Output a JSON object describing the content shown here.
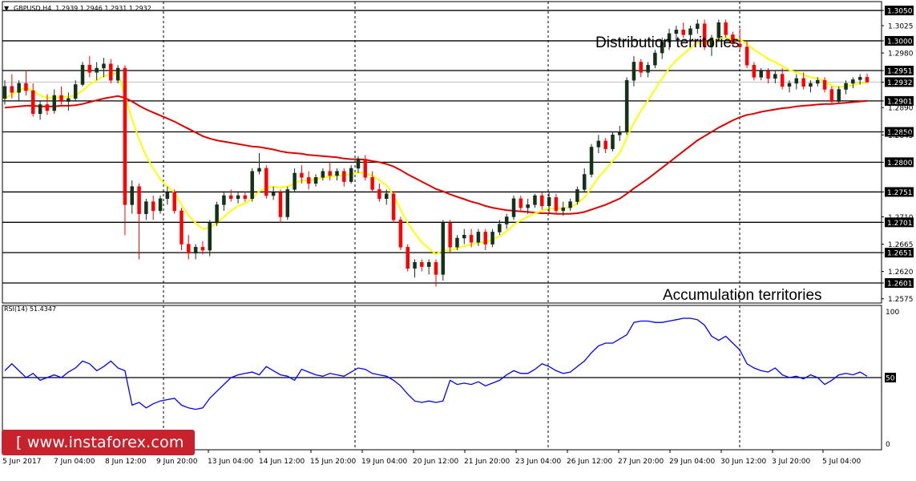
{
  "chart_data": {
    "type": "candlestick",
    "symbol_header": "GBPUSD,H4",
    "ohlc_header": "1.2939 1.2946 1.2931 1.2932",
    "y_ticks": [
      "1.3050",
      "1.3025",
      "1.3000",
      "1.2980",
      "1.2951",
      "1.2932",
      "1.2901",
      "1.2890",
      "1.2850",
      "1.2845",
      "1.2800",
      "1.2751",
      "1.2710",
      "1.2701",
      "1.2665",
      "1.2651",
      "1.2620",
      "1.2601",
      "1.2575"
    ],
    "boxed_levels": [
      "1.3050",
      "1.3000",
      "1.2951",
      "1.2932",
      "1.2901",
      "1.2850",
      "1.2800",
      "1.2751",
      "1.2701",
      "1.2651",
      "1.2601"
    ],
    "current_price": "1.2932",
    "ylim": [
      1.2568,
      1.3062
    ],
    "x_labels": [
      "5 Jun 2017",
      "7 Jun 04:00",
      "8 Jun 12:00",
      "9 Jun 20:00",
      "13 Jun 04:00",
      "14 Jun 12:00",
      "15 Jun 20:00",
      "19 Jun 04:00",
      "20 Jun 12:00",
      "21 Jun 20:00",
      "23 Jun 04:00",
      "26 Jun 12:00",
      "27 Jun 20:00",
      "29 Jun 04:00",
      "30 Jun 12:00",
      "3 Jul 20:00",
      "5 Jul 04:00"
    ],
    "annotations": [
      "Distribution territories",
      "Accumulation territories"
    ],
    "candles": [
      [
        1.2905,
        1.2935,
        1.2895,
        1.2925
      ],
      [
        1.2925,
        1.2945,
        1.2905,
        1.2915
      ],
      [
        1.2915,
        1.2935,
        1.29,
        1.293
      ],
      [
        1.293,
        1.295,
        1.291,
        1.2918
      ],
      [
        1.2918,
        1.293,
        1.2875,
        1.288
      ],
      [
        1.288,
        1.29,
        1.287,
        1.2895
      ],
      [
        1.2895,
        1.2912,
        1.2878,
        1.2885
      ],
      [
        1.2885,
        1.292,
        1.288,
        1.291
      ],
      [
        1.291,
        1.2925,
        1.2895,
        1.29
      ],
      [
        1.29,
        1.2915,
        1.2885,
        1.2905
      ],
      [
        1.2905,
        1.2935,
        1.29,
        1.2928
      ],
      [
        1.2928,
        1.2965,
        1.2925,
        1.296
      ],
      [
        1.296,
        1.2975,
        1.294,
        1.2948
      ],
      [
        1.2948,
        1.2965,
        1.2935,
        1.2955
      ],
      [
        1.2955,
        1.2972,
        1.294,
        1.2962
      ],
      [
        1.2962,
        1.297,
        1.293,
        1.2935
      ],
      [
        1.2935,
        1.296,
        1.293,
        1.2955
      ],
      [
        1.2955,
        1.296,
        1.268,
        1.273
      ],
      [
        1.273,
        1.277,
        1.2715,
        1.276
      ],
      [
        1.276,
        1.2765,
        1.264,
        1.2715
      ],
      [
        1.2715,
        1.274,
        1.2705,
        1.2735
      ],
      [
        1.2735,
        1.2745,
        1.2705,
        1.272
      ],
      [
        1.272,
        1.2745,
        1.2715,
        1.274
      ],
      [
        1.274,
        1.276,
        1.273,
        1.275
      ],
      [
        1.275,
        1.2755,
        1.2715,
        1.272
      ],
      [
        1.272,
        1.2725,
        1.2655,
        1.2665
      ],
      [
        1.2665,
        1.268,
        1.264,
        1.265
      ],
      [
        1.265,
        1.2665,
        1.264,
        1.266
      ],
      [
        1.266,
        1.267,
        1.2648,
        1.2655
      ],
      [
        1.2655,
        1.2705,
        1.2645,
        1.27
      ],
      [
        1.27,
        1.2735,
        1.2695,
        1.273
      ],
      [
        1.273,
        1.275,
        1.272,
        1.2745
      ],
      [
        1.2745,
        1.2755,
        1.2735,
        1.274
      ],
      [
        1.274,
        1.275,
        1.2732,
        1.2745
      ],
      [
        1.2745,
        1.2752,
        1.2735,
        1.274
      ],
      [
        1.274,
        1.279,
        1.2735,
        1.2785
      ],
      [
        1.2785,
        1.2815,
        1.278,
        1.279
      ],
      [
        1.279,
        1.2795,
        1.274,
        1.2745
      ],
      [
        1.2745,
        1.276,
        1.2738,
        1.275
      ],
      [
        1.275,
        1.2755,
        1.27,
        1.271
      ],
      [
        1.271,
        1.276,
        1.2705,
        1.2755
      ],
      [
        1.2755,
        1.279,
        1.275,
        1.2782
      ],
      [
        1.2782,
        1.2795,
        1.2765,
        1.2775
      ],
      [
        1.2775,
        1.2785,
        1.2755,
        1.2765
      ],
      [
        1.2765,
        1.278,
        1.276,
        1.2775
      ],
      [
        1.2775,
        1.279,
        1.277,
        1.2785
      ],
      [
        1.2785,
        1.28,
        1.277,
        1.2778
      ],
      [
        1.2778,
        1.279,
        1.277,
        1.2785
      ],
      [
        1.2785,
        1.279,
        1.276,
        1.2768
      ],
      [
        1.2768,
        1.2795,
        1.2765,
        1.279
      ],
      [
        1.279,
        1.281,
        1.2782,
        1.2805
      ],
      [
        1.2805,
        1.2812,
        1.277,
        1.2775
      ],
      [
        1.2775,
        1.2785,
        1.275,
        1.2755
      ],
      [
        1.2755,
        1.2765,
        1.2735,
        1.274
      ],
      [
        1.274,
        1.2755,
        1.273,
        1.2748
      ],
      [
        1.2748,
        1.2752,
        1.27,
        1.2705
      ],
      [
        1.2705,
        1.271,
        1.2655,
        1.266
      ],
      [
        1.266,
        1.2665,
        1.262,
        1.2625
      ],
      [
        1.2625,
        1.264,
        1.261,
        1.2635
      ],
      [
        1.2635,
        1.264,
        1.262,
        1.2628
      ],
      [
        1.2628,
        1.264,
        1.2615,
        1.2635
      ],
      [
        1.2635,
        1.264,
        1.2595,
        1.2615
      ],
      [
        1.2615,
        1.2705,
        1.2605,
        1.27
      ],
      [
        1.27,
        1.2705,
        1.265,
        1.266
      ],
      [
        1.266,
        1.268,
        1.2655,
        1.2675
      ],
      [
        1.2675,
        1.269,
        1.2665,
        1.268
      ],
      [
        1.268,
        1.269,
        1.266,
        1.2668
      ],
      [
        1.2668,
        1.269,
        1.2662,
        1.2685
      ],
      [
        1.2685,
        1.269,
        1.2655,
        1.2665
      ],
      [
        1.2665,
        1.269,
        1.266,
        1.2685
      ],
      [
        1.2685,
        1.2705,
        1.268,
        1.2698
      ],
      [
        1.2698,
        1.2715,
        1.269,
        1.271
      ],
      [
        1.271,
        1.2745,
        1.2705,
        1.274
      ],
      [
        1.274,
        1.2745,
        1.2718,
        1.2725
      ],
      [
        1.2725,
        1.274,
        1.2715,
        1.273
      ],
      [
        1.273,
        1.2748,
        1.2725,
        1.2745
      ],
      [
        1.2745,
        1.275,
        1.2722,
        1.2728
      ],
      [
        1.2728,
        1.275,
        1.2715,
        1.2742
      ],
      [
        1.2742,
        1.2748,
        1.2715,
        1.272
      ],
      [
        1.272,
        1.2735,
        1.2712,
        1.2725
      ],
      [
        1.2725,
        1.274,
        1.272,
        1.2735
      ],
      [
        1.2735,
        1.276,
        1.273,
        1.2755
      ],
      [
        1.2755,
        1.279,
        1.275,
        1.278
      ],
      [
        1.278,
        1.283,
        1.2775,
        1.2825
      ],
      [
        1.2825,
        1.2845,
        1.2815,
        1.2835
      ],
      [
        1.2835,
        1.284,
        1.2815,
        1.2822
      ],
      [
        1.2822,
        1.285,
        1.2818,
        1.2845
      ],
      [
        1.2845,
        1.286,
        1.2835,
        1.285
      ],
      [
        1.285,
        1.294,
        1.2845,
        1.2935
      ],
      [
        1.2935,
        1.2975,
        1.2925,
        1.2965
      ],
      [
        1.2965,
        1.297,
        1.294,
        1.2948
      ],
      [
        1.2948,
        1.2965,
        1.294,
        1.296
      ],
      [
        1.296,
        1.2985,
        1.2955,
        1.298
      ],
      [
        1.298,
        1.3005,
        1.297,
        1.2998
      ],
      [
        1.2998,
        1.302,
        1.2985,
        1.3012
      ],
      [
        1.3012,
        1.3025,
        1.3,
        1.3018
      ],
      [
        1.3018,
        1.303,
        1.3005,
        1.301
      ],
      [
        1.301,
        1.3025,
        1.2995,
        1.302
      ],
      [
        1.302,
        1.3035,
        1.3012,
        1.3028
      ],
      [
        1.3028,
        1.3035,
        1.2985,
        1.299
      ],
      [
        1.299,
        1.301,
        1.2975,
        1.3005
      ],
      [
        1.3005,
        1.3035,
        1.2998,
        1.303
      ],
      [
        1.303,
        1.3035,
        1.3005,
        1.301
      ],
      [
        1.301,
        1.3015,
        1.299,
        1.2995
      ],
      [
        1.2995,
        1.302,
        1.2985,
        1.299
      ],
      [
        1.299,
        1.3,
        1.2955,
        1.296
      ],
      [
        1.296,
        1.2965,
        1.2935,
        1.294
      ],
      [
        1.294,
        1.2955,
        1.2935,
        1.295
      ],
      [
        1.295,
        1.2955,
        1.293,
        1.2938
      ],
      [
        1.2938,
        1.295,
        1.293,
        1.2945
      ],
      [
        1.2945,
        1.2955,
        1.292,
        1.2925
      ],
      [
        1.2925,
        1.2935,
        1.2915,
        1.293
      ],
      [
        1.293,
        1.2945,
        1.292,
        1.2938
      ],
      [
        1.2938,
        1.2948,
        1.292,
        1.2925
      ],
      [
        1.2925,
        1.2935,
        1.2915,
        1.293
      ],
      [
        1.293,
        1.294,
        1.2925,
        1.2935
      ],
      [
        1.2935,
        1.294,
        1.2915,
        1.292
      ],
      [
        1.292,
        1.2925,
        1.2895,
        1.29
      ],
      [
        1.29,
        1.2925,
        1.2898,
        1.292
      ],
      [
        1.292,
        1.2935,
        1.2912,
        1.293
      ],
      [
        1.293,
        1.294,
        1.2922,
        1.2936
      ],
      [
        1.2936,
        1.2945,
        1.2928,
        1.294
      ],
      [
        1.294,
        1.2946,
        1.2931,
        1.2932
      ]
    ],
    "ma_fast": [
      1.2905,
      1.2912,
      1.2918,
      1.2922,
      1.2918,
      1.291,
      1.2906,
      1.2906,
      1.2908,
      1.2908,
      1.291,
      1.2918,
      1.2928,
      1.2935,
      1.2942,
      1.2945,
      1.2947,
      1.291,
      1.287,
      1.2838,
      1.281,
      1.279,
      1.2772,
      1.276,
      1.275,
      1.273,
      1.2712,
      1.27,
      1.269,
      1.2692,
      1.27,
      1.271,
      1.272,
      1.2728,
      1.2732,
      1.274,
      1.2752,
      1.2758,
      1.276,
      1.2758,
      1.276,
      1.2765,
      1.277,
      1.277,
      1.2772,
      1.2775,
      1.2776,
      1.2778,
      1.2778,
      1.278,
      1.2783,
      1.2782,
      1.2778,
      1.277,
      1.2762,
      1.2745,
      1.2722,
      1.27,
      1.2683,
      1.2668,
      1.2658,
      1.2648,
      1.2655,
      1.2655,
      1.2658,
      1.2662,
      1.2664,
      1.2668,
      1.2668,
      1.2672,
      1.2678,
      1.2686,
      1.2697,
      1.2704,
      1.271,
      1.2716,
      1.272,
      1.2724,
      1.2724,
      1.2724,
      1.2726,
      1.2732,
      1.2742,
      1.2758,
      1.2775,
      1.2788,
      1.2802,
      1.2815,
      1.284,
      1.2865,
      1.2885,
      1.2902,
      1.292,
      1.2938,
      1.2955,
      1.2968,
      1.2978,
      1.2988,
      1.2997,
      1.2997,
      1.2998,
      1.3003,
      1.3005,
      1.3004,
      1.3002,
      1.2995,
      1.2985,
      1.2978,
      1.297,
      1.2965,
      1.2958,
      1.2952,
      1.2948,
      1.2944,
      1.294,
      1.2938,
      1.2934,
      1.2926,
      1.2924,
      1.2925,
      1.2927,
      1.293,
      1.2931
    ],
    "ma_slow": [
      1.289,
      1.2891,
      1.2892,
      1.2893,
      1.2893,
      1.2892,
      1.2892,
      1.2892,
      1.2893,
      1.2893,
      1.2894,
      1.2896,
      1.2899,
      1.2902,
      1.2905,
      1.2907,
      1.2909,
      1.2906,
      1.29,
      1.2893,
      1.2887,
      1.2882,
      1.2877,
      1.2872,
      1.2867,
      1.2861,
      1.2855,
      1.2849,
      1.2843,
      1.2839,
      1.2836,
      1.2834,
      1.2832,
      1.283,
      1.2828,
      1.2826,
      1.2825,
      1.2823,
      1.2821,
      1.2818,
      1.2816,
      1.2815,
      1.2814,
      1.2812,
      1.2811,
      1.281,
      1.2809,
      1.2808,
      1.2806,
      1.2805,
      1.2805,
      1.2804,
      1.2802,
      1.28,
      1.2797,
      1.2793,
      1.2787,
      1.278,
      1.2774,
      1.2768,
      1.2762,
      1.2756,
      1.2752,
      1.2747,
      1.2743,
      1.2739,
      1.2735,
      1.2732,
      1.2728,
      1.2725,
      1.2723,
      1.2721,
      1.272,
      1.2719,
      1.2718,
      1.2717,
      1.2716,
      1.2716,
      1.2715,
      1.2715,
      1.2715,
      1.2716,
      1.2718,
      1.2722,
      1.2726,
      1.273,
      1.2735,
      1.274,
      1.2748,
      1.2757,
      1.2765,
      1.2773,
      1.2782,
      1.2791,
      1.28,
      1.2809,
      1.2818,
      1.2827,
      1.2836,
      1.2843,
      1.285,
      1.2857,
      1.2863,
      1.2869,
      1.2874,
      1.2878,
      1.288,
      1.2883,
      1.2885,
      1.2887,
      1.2889,
      1.289,
      1.2892,
      1.2893,
      1.2894,
      1.2895,
      1.2896,
      1.2896,
      1.2897,
      1.2898,
      1.2899,
      1.29,
      1.2901
    ],
    "rsi": {
      "label": "RSI(14) 51.4347",
      "levels": [
        "100",
        "50",
        "0"
      ],
      "ylim": [
        0,
        100
      ],
      "values": [
        55,
        60,
        55,
        50,
        53,
        48,
        50,
        52,
        50,
        54,
        57,
        62,
        60,
        55,
        58,
        62,
        57,
        55,
        30,
        32,
        28,
        31,
        33,
        34,
        35,
        30,
        28,
        27,
        28,
        35,
        40,
        45,
        50,
        52,
        53,
        54,
        52,
        58,
        55,
        52,
        51,
        48,
        56,
        54,
        52,
        51,
        53,
        52,
        51,
        54,
        57,
        56,
        53,
        52,
        51,
        48,
        44,
        38,
        33,
        32,
        33,
        32,
        33,
        48,
        45,
        46,
        45,
        47,
        44,
        46,
        48,
        52,
        55,
        53,
        53,
        56,
        60,
        58,
        55,
        53,
        54,
        58,
        62,
        68,
        73,
        75,
        75,
        78,
        81,
        90,
        91,
        91,
        90,
        90,
        91,
        92,
        93,
        93,
        92,
        88,
        80,
        77,
        80,
        75,
        70,
        60,
        57,
        55,
        54,
        57,
        52,
        50,
        51,
        49,
        52,
        50,
        45,
        48,
        52,
        53,
        52,
        54,
        51
      ]
    }
  },
  "logo": {
    "text": "[ www.instaforex.com ]"
  },
  "colors": {
    "bull": "#14311a",
    "bear": "#ff0000",
    "ma_fast": "#ffff00",
    "ma_slow": "#e00000",
    "rsi": "#0000ff",
    "price_box": "#000000"
  }
}
